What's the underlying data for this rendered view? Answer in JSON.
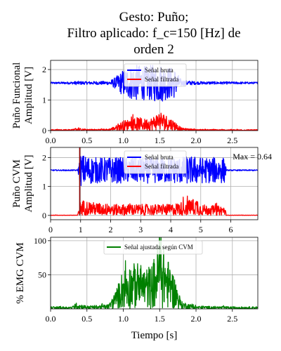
{
  "chart_data": {
    "title_lines": [
      "Gesto: Puño;",
      "Filtro aplicado: f_c=150 [Hz] de",
      "orden 2"
    ],
    "colors": {
      "raw": "#0000ff",
      "filtered": "#ff0000",
      "adjusted": "#008000",
      "marker": "#8b0000"
    },
    "panels": [
      {
        "type": "line",
        "ylabel_lines": [
          "Puño Funcional",
          "Amplitud [V]"
        ],
        "xlim": [
          0,
          2.85
        ],
        "ylim": [
          0,
          2.3
        ],
        "xticks": [
          0.0,
          0.5,
          1.0,
          1.5,
          2.0,
          2.5
        ],
        "xtick_labels": [
          "0.0",
          "0.5",
          "1.0",
          "1.5",
          "2.0",
          "2.5"
        ],
        "yticks": [
          0,
          1,
          2
        ],
        "ytick_labels": [
          "0",
          "1",
          "2"
        ],
        "grid": true,
        "legend": [
          "Señal bruta",
          "Señal filtrada"
        ],
        "legend_position": "top-center",
        "series": [
          {
            "name": "Señal bruta",
            "color": "raw",
            "baseline": 1.56,
            "x": [
              0,
              0.3,
              0.35,
              0.5,
              0.8,
              0.9,
              1.0,
              1.1,
              1.2,
              1.3,
              1.4,
              1.5,
              1.6,
              1.7,
              1.8,
              2.0,
              2.5,
              2.85
            ],
            "amp": [
              0.03,
              0.04,
              0.06,
              0.05,
              0.06,
              0.2,
              0.45,
              0.55,
              0.6,
              0.55,
              0.6,
              0.65,
              0.55,
              0.5,
              0.1,
              0.05,
              0.04,
              0.03
            ]
          },
          {
            "name": "Señal filtrada",
            "color": "filtered",
            "baseline": 0.0,
            "x": [
              0,
              0.3,
              0.35,
              0.5,
              0.8,
              0.9,
              1.0,
              1.1,
              1.2,
              1.3,
              1.4,
              1.5,
              1.6,
              1.7,
              1.8,
              2.0,
              2.5,
              2.85
            ],
            "amp": [
              0.03,
              0.04,
              0.08,
              0.04,
              0.05,
              0.15,
              0.3,
              0.35,
              0.4,
              0.35,
              0.4,
              0.6,
              0.45,
              0.3,
              0.08,
              0.04,
              0.03,
              0.03
            ]
          }
        ]
      },
      {
        "type": "line",
        "ylabel_lines": [
          "Puño CVM",
          "Amplitud [V]"
        ],
        "xlim": [
          0,
          6.9
        ],
        "ylim": [
          -0.15,
          2.35
        ],
        "xticks": [
          0,
          1,
          2,
          3,
          4,
          5,
          6
        ],
        "xtick_labels": [
          "0",
          "1",
          "2",
          "3",
          "4",
          "5",
          "6"
        ],
        "yticks": [
          0,
          1,
          2
        ],
        "ytick_labels": [
          "0",
          "1",
          "2"
        ],
        "grid": true,
        "legend": [
          "Señal bruta",
          "Señal filtrada"
        ],
        "legend_position": "top-center",
        "annotation": "Max = 0.64",
        "vline_x": 0.97,
        "series": [
          {
            "name": "Señal bruta",
            "color": "raw",
            "baseline": 1.56,
            "x": [
              0,
              0.9,
              1.0,
              1.5,
              2.0,
              3.0,
              4.0,
              4.9,
              5.0,
              5.5,
              5.8,
              5.85,
              6.9
            ],
            "amp": [
              0.02,
              0.02,
              0.55,
              0.45,
              0.45,
              0.45,
              0.45,
              0.5,
              0.45,
              0.45,
              0.45,
              0.02,
              0.02
            ]
          },
          {
            "name": "Señal filtrada",
            "color": "filtered",
            "baseline": 0.0,
            "x": [
              0,
              0.9,
              1.0,
              1.5,
              2.0,
              3.0,
              4.0,
              4.9,
              5.0,
              5.5,
              5.8,
              5.85,
              6.9
            ],
            "amp": [
              0.01,
              0.01,
              0.5,
              0.4,
              0.35,
              0.35,
              0.35,
              0.55,
              0.35,
              0.3,
              0.3,
              0.01,
              0.01
            ]
          }
        ]
      },
      {
        "type": "line",
        "ylabel_lines": [
          "% EMG CVM"
        ],
        "xlabel": "Tiempo [s]",
        "xlim": [
          0,
          2.85
        ],
        "ylim": [
          0,
          105
        ],
        "xticks": [
          0.0,
          0.5,
          1.0,
          1.5,
          2.0,
          2.5
        ],
        "xtick_labels": [
          "0.0",
          "0.5",
          "1.0",
          "1.5",
          "2.0",
          "2.5"
        ],
        "yticks": [
          50,
          100
        ],
        "ytick_labels": [
          "50",
          "100"
        ],
        "grid": true,
        "legend": [
          "Señal ajustada según CVM"
        ],
        "legend_position": "top-center",
        "series": [
          {
            "name": "Señal ajustada según CVM",
            "color": "adjusted",
            "baseline": 0,
            "x": [
              0,
              0.3,
              0.35,
              0.5,
              0.8,
              0.9,
              1.0,
              1.1,
              1.2,
              1.3,
              1.4,
              1.5,
              1.6,
              1.7,
              1.8,
              2.0,
              2.5,
              2.85
            ],
            "amp": [
              3,
              3,
              8,
              4,
              6,
              25,
              55,
              60,
              62,
              55,
              60,
              100,
              70,
              45,
              10,
              4,
              3,
              3
            ]
          }
        ]
      }
    ]
  }
}
